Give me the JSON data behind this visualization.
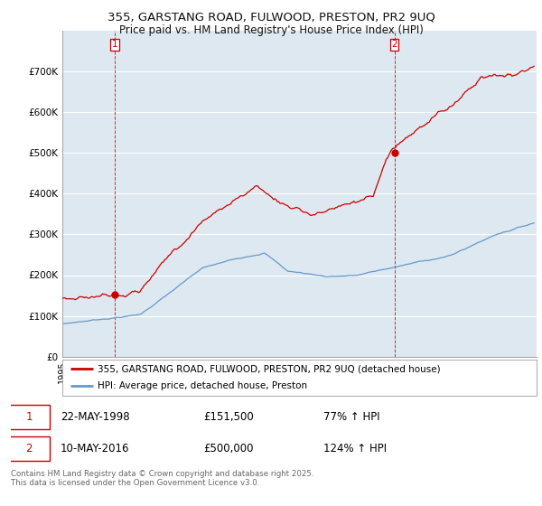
{
  "title_line1": "355, GARSTANG ROAD, FULWOOD, PRESTON, PR2 9UQ",
  "title_line2": "Price paid vs. HM Land Registry's House Price Index (HPI)",
  "ylim": [
    0,
    800000
  ],
  "yticks": [
    0,
    100000,
    200000,
    300000,
    400000,
    500000,
    600000,
    700000
  ],
  "ytick_labels": [
    "£0",
    "£100K",
    "£200K",
    "£300K",
    "£400K",
    "£500K",
    "£600K",
    "£700K"
  ],
  "xlim_start": 1995.0,
  "xlim_end": 2025.5,
  "background_color": "#ffffff",
  "plot_bg_color": "#dde8f0",
  "grid_color": "#ffffff",
  "red_line_color": "#cc0000",
  "blue_line_color": "#6699cc",
  "sale1_x": 1998.388,
  "sale1_y": 151500,
  "sale2_x": 2016.356,
  "sale2_y": 500000,
  "legend_line1": "355, GARSTANG ROAD, FULWOOD, PRESTON, PR2 9UQ (detached house)",
  "legend_line2": "HPI: Average price, detached house, Preston",
  "footer": "Contains HM Land Registry data © Crown copyright and database right 2025.\nThis data is licensed under the Open Government Licence v3.0."
}
